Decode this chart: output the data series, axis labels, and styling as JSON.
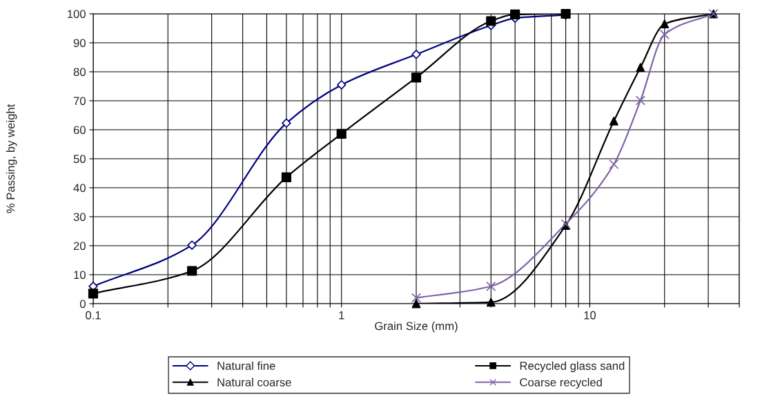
{
  "chart_data": {
    "type": "line",
    "xlabel": "Grain Size (mm)",
    "ylabel": "% Passing, by weight",
    "log": "x",
    "xlim": [
      0.1,
      40
    ],
    "xticks": [
      0.1,
      {
        "value": 0.2,
        "label": null
      },
      {
        "value": 0.3,
        "label": null
      },
      {
        "value": 0.4,
        "label": null
      },
      {
        "value": 0.5,
        "label": null
      },
      {
        "value": 0.6,
        "label": null
      },
      {
        "value": 0.7,
        "label": null
      },
      {
        "value": 0.8,
        "label": null
      },
      {
        "value": 0.9,
        "label": null
      },
      1,
      {
        "value": 2,
        "label": null
      },
      {
        "value": 3,
        "label": null
      },
      {
        "value": 4,
        "label": null
      },
      {
        "value": 5,
        "label": null
      },
      {
        "value": 6,
        "label": null
      },
      {
        "value": 7,
        "label": null
      },
      {
        "value": 8,
        "label": null
      },
      {
        "value": 9,
        "label": null
      },
      10,
      {
        "value": 20,
        "label": null
      },
      {
        "value": 30,
        "label": null
      },
      {
        "value": 40,
        "label": null
      }
    ],
    "ylim": [
      0,
      100
    ],
    "yticks": [
      0,
      10,
      20,
      30,
      40,
      50,
      60,
      70,
      80,
      90,
      100
    ],
    "grid": true,
    "legend": "bottom",
    "series": [
      {
        "name": "Natural fine",
        "color": "#000080",
        "marker": "diamond",
        "x": [
          0.1,
          0.25,
          0.6,
          1,
          2,
          4,
          5,
          8
        ],
        "values": [
          6,
          20.2,
          62.3,
          75.5,
          86,
          96,
          98.5,
          99.6
        ]
      },
      {
        "name": "Recycled glass sand",
        "color": "#000000",
        "marker": "square",
        "x": [
          0.1,
          0.25,
          0.6,
          1,
          2,
          4,
          5,
          8
        ],
        "values": [
          3.5,
          11.3,
          43.6,
          58.6,
          78,
          97.5,
          99.8,
          100
        ]
      },
      {
        "name": "Natural coarse",
        "color": "#000000",
        "marker": "triangle",
        "x": [
          2,
          4,
          8,
          12.5,
          16,
          20,
          31.5
        ],
        "values": [
          0,
          0.5,
          27,
          63,
          81.5,
          96.5,
          100
        ]
      },
      {
        "name": "Coarse recycled",
        "color": "#7f63a8",
        "marker": "cross",
        "x": [
          2,
          4,
          8,
          12.5,
          16,
          20,
          31.5
        ],
        "values": [
          2,
          6,
          27.5,
          48.1,
          70.1,
          92.9,
          100
        ]
      }
    ]
  }
}
